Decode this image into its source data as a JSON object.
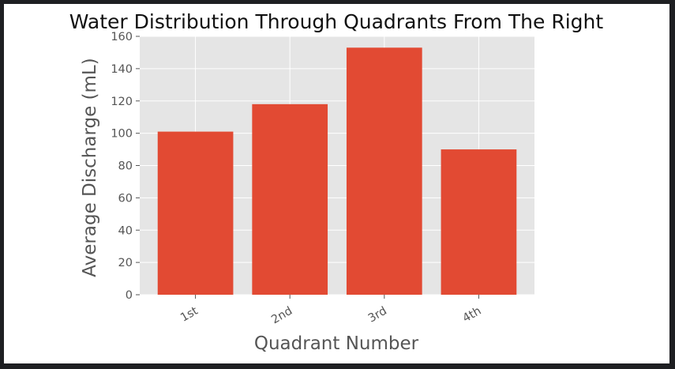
{
  "chart_data": {
    "type": "bar",
    "title": "Water Distribution Through Quadrants From The Right",
    "xlabel": "Quadrant Number",
    "ylabel": "Average Discharge (mL)",
    "categories": [
      "1st",
      "2nd",
      "3rd",
      "4th"
    ],
    "values": [
      101,
      118,
      153,
      90
    ],
    "ylim": [
      0,
      160
    ],
    "yticks": [
      "0",
      "20",
      "40",
      "60",
      "80",
      "100",
      "120",
      "140",
      "160"
    ],
    "grid": true,
    "legend": "none",
    "x_tick_rotation": "30 degrees",
    "colors": {
      "bar": "#e24a33",
      "plot_background": "#e5e5e5",
      "grid": "#ffffff"
    }
  }
}
